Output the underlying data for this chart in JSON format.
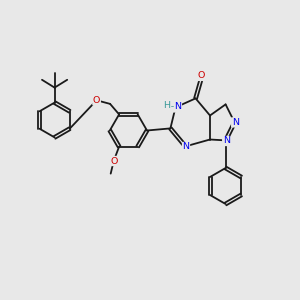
{
  "bg": "#e8e8e8",
  "bc": "#1a1a1a",
  "bw": 1.3,
  "dbo": 0.05,
  "fs": 6.8,
  "N_col": "#0000ee",
  "O_col": "#cc0000",
  "NH_col": "#3a9999",
  "xlim": [
    0,
    10
  ],
  "ylim": [
    0,
    10
  ]
}
